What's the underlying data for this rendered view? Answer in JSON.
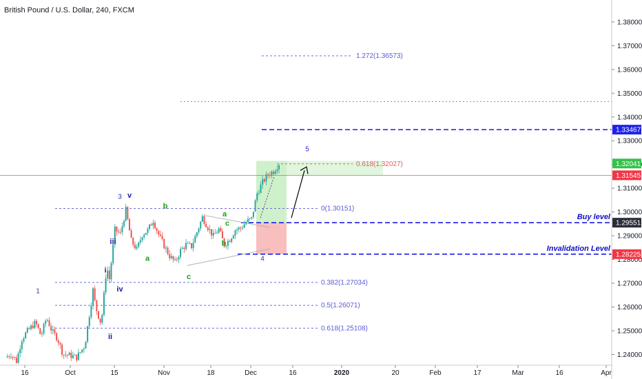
{
  "header": {
    "title": "British Pound / U.S. Dollar, 240, FXCM"
  },
  "colors": {
    "bull": "#26a69a",
    "bear": "#ef5350",
    "wave_blue": "#1a1aa6",
    "wave_green": "#14a314",
    "fib": "#6b6bd6",
    "level": "#1a1ae6",
    "resistance": "#e06060",
    "price_red": "#f23645",
    "badge_blue": "#1e22e8",
    "badge_dark": "#2a2e39",
    "target_zone": "#a5e5a0",
    "stop_zone": "#f7a3a3"
  },
  "chart_data": {
    "type": "candlestick",
    "symbol": "GBPUSD",
    "timeframe": "240",
    "source": "FXCM",
    "ylim": [
      1.2355,
      1.3875
    ],
    "y_ticks": [
      1.24,
      1.25,
      1.26,
      1.27,
      1.28,
      1.29,
      1.3,
      1.31,
      1.32,
      1.33,
      1.34,
      1.35,
      1.36,
      1.37,
      1.38
    ],
    "y_tick_labels": [
      "1.24000",
      "1.25000",
      "1.26000",
      "1.27000",
      "1.28000",
      "1.29000",
      "1.30000",
      "1.31000",
      "1.32000",
      "1.33000",
      "1.34000",
      "1.35000",
      "1.36000",
      "1.37000",
      "1.38000"
    ],
    "x_labels": [
      "16",
      "Oct",
      "15",
      "Nov",
      "18",
      "Dec",
      "16",
      "2020",
      "20",
      "Feb",
      "17",
      "Mar",
      "16",
      "Apr"
    ],
    "price_path": [
      {
        "t": 0,
        "p": 1.2388
      },
      {
        "t": 2,
        "p": 1.2402
      },
      {
        "t": 4,
        "p": 1.2372
      },
      {
        "t": 6,
        "p": 1.2466
      },
      {
        "t": 8,
        "p": 1.2498
      },
      {
        "t": 11,
        "p": 1.2535
      },
      {
        "t": 13,
        "p": 1.2478
      },
      {
        "t": 15,
        "p": 1.2555
      },
      {
        "t": 17,
        "p": 1.2498
      },
      {
        "t": 19,
        "p": 1.2468
      },
      {
        "t": 21,
        "p": 1.2402
      },
      {
        "t": 24,
        "p": 1.2395
      },
      {
        "t": 26,
        "p": 1.2388
      },
      {
        "t": 29,
        "p": 1.2438
      },
      {
        "t": 32,
        "p": 1.2672
      },
      {
        "t": 33,
        "p": 1.2598
      },
      {
        "t": 35,
        "p": 1.2528
      },
      {
        "t": 37,
        "p": 1.2772
      },
      {
        "t": 38,
        "p": 1.2718
      },
      {
        "t": 40,
        "p": 1.2925
      },
      {
        "t": 42,
        "p": 1.2908
      },
      {
        "t": 44,
        "p": 1.3008
      },
      {
        "t": 46,
        "p": 1.2878
      },
      {
        "t": 48,
        "p": 1.2842
      },
      {
        "t": 50,
        "p": 1.2905
      },
      {
        "t": 52,
        "p": 1.2922
      },
      {
        "t": 54,
        "p": 1.2965
      },
      {
        "t": 56,
        "p": 1.2905
      },
      {
        "t": 58,
        "p": 1.2858
      },
      {
        "t": 60,
        "p": 1.2815
      },
      {
        "t": 62,
        "p": 1.2788
      },
      {
        "t": 64,
        "p": 1.2838
      },
      {
        "t": 66,
        "p": 1.2862
      },
      {
        "t": 68,
        "p": 1.2855
      },
      {
        "t": 70,
        "p": 1.2915
      },
      {
        "t": 72,
        "p": 1.2978
      },
      {
        "t": 74,
        "p": 1.2935
      },
      {
        "t": 76,
        "p": 1.2898
      },
      {
        "t": 78,
        "p": 1.2928
      },
      {
        "t": 80,
        "p": 1.2862
      },
      {
        "t": 82,
        "p": 1.2885
      },
      {
        "t": 84,
        "p": 1.2925
      },
      {
        "t": 86,
        "p": 1.2932
      },
      {
        "t": 88,
        "p": 1.2958
      },
      {
        "t": 90,
        "p": 1.2972
      },
      {
        "t": 92,
        "p": 1.3078
      },
      {
        "t": 94,
        "p": 1.3125
      },
      {
        "t": 96,
        "p": 1.3158
      },
      {
        "t": 98,
        "p": 1.3172
      },
      {
        "t": 100,
        "p": 1.3204
      }
    ],
    "fib_levels": [
      {
        "label": "1.272(1.36573)",
        "price": 1.36573
      },
      {
        "label": "0.618(1.32027)",
        "price": 1.32027
      },
      {
        "label": "0(1.30151)",
        "price": 1.30151
      },
      {
        "label": "0.382(1.27034)",
        "price": 1.27034
      },
      {
        "label": "0.5(1.26071)",
        "price": 1.26071
      },
      {
        "label": "0.618(1.25108)",
        "price": 1.25108
      }
    ],
    "horizontal_levels": [
      {
        "price": 1.33467,
        "style": "dashed-blue",
        "badge": "1.33467"
      },
      {
        "price": 1.2955,
        "style": "dashed-blue",
        "badge": "1.29551",
        "label": "Buy level"
      },
      {
        "price": 1.28225,
        "style": "dashed-blue",
        "badge": "1.28225",
        "label": "Invalidation Level"
      },
      {
        "price": 1.3465,
        "style": "dotted-red"
      },
      {
        "price": 1.31545,
        "style": "solid-red",
        "badge": "1.31545"
      }
    ],
    "current_price": {
      "badge": "1.32041",
      "price": 1.32041
    },
    "wave_labels_blue": [
      {
        "text": "1",
        "price": 1.2658
      },
      {
        "text": "ii",
        "price": 1.2465
      },
      {
        "text": "i",
        "price": 1.2745
      },
      {
        "text": "iii",
        "price": 1.2865
      },
      {
        "text": "iv",
        "price": 1.2665
      },
      {
        "text": "3",
        "price": 1.3055
      },
      {
        "text": "v",
        "price": 1.306
      },
      {
        "text": "4",
        "price": 1.2795
      },
      {
        "text": "5",
        "price": 1.3255
      }
    ],
    "wave_labels_green": [
      {
        "text": "a",
        "price": 1.2795
      },
      {
        "text": "b",
        "price": 1.3015
      },
      {
        "text": "c",
        "price": 1.2718
      },
      {
        "text": "a",
        "price": 1.2981
      },
      {
        "text": "c",
        "price": 1.2942
      },
      {
        "text": "b",
        "price": 1.2858
      }
    ]
  }
}
